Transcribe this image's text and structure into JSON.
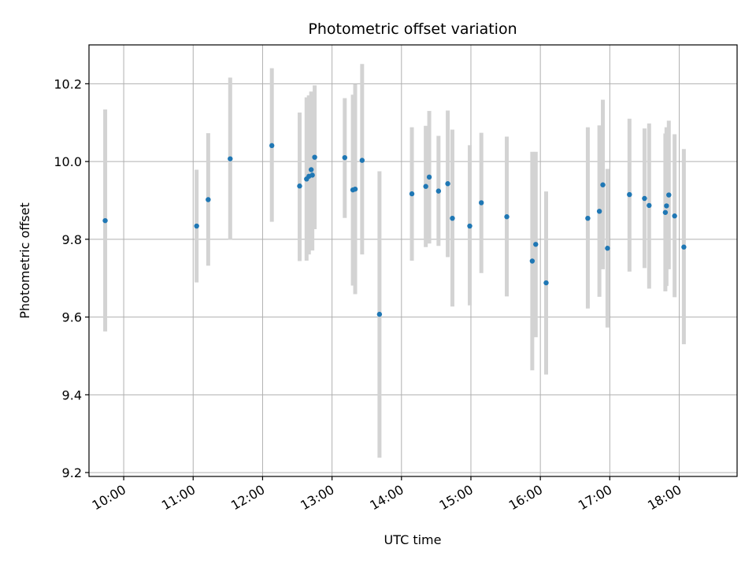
{
  "chart_data": {
    "type": "scatter",
    "title": "Photometric offset variation",
    "xlabel": "UTC time",
    "ylabel": "Photometric offset",
    "x_unit": "time of day (UTC)",
    "xlim": [
      "09:30",
      "18:50"
    ],
    "ylim": [
      9.19,
      10.3
    ],
    "grid": true,
    "y_ticks": [
      9.2,
      9.4,
      9.6,
      9.8,
      10.0,
      10.2
    ],
    "x_ticks": [
      "10:00",
      "11:00",
      "12:00",
      "13:00",
      "14:00",
      "15:00",
      "16:00",
      "17:00",
      "18:00"
    ],
    "colors": {
      "point": "#1f77b4",
      "errorbar": "#d3d3d3",
      "grid": "#b0b0b0"
    },
    "points": [
      {
        "t": "09:44",
        "y": 9.848,
        "low": 9.563,
        "high": 10.134
      },
      {
        "t": "11:03",
        "y": 9.834,
        "low": 9.689,
        "high": 9.979
      },
      {
        "t": "11:13",
        "y": 9.902,
        "low": 9.732,
        "high": 10.073
      },
      {
        "t": "11:32",
        "y": 10.007,
        "low": 9.799,
        "high": 10.216
      },
      {
        "t": "12:08",
        "y": 10.041,
        "low": 9.845,
        "high": 10.24
      },
      {
        "t": "12:32",
        "y": 9.937,
        "low": 9.744,
        "high": 10.126
      },
      {
        "t": "12:38",
        "y": 9.955,
        "low": 9.745,
        "high": 10.165
      },
      {
        "t": "12:40",
        "y": 9.962,
        "low": 9.761,
        "high": 10.17
      },
      {
        "t": "12:42",
        "y": 9.979,
        "low": 9.775,
        "high": 10.18
      },
      {
        "t": "12:43",
        "y": 9.965,
        "low": 9.771,
        "high": 10.166
      },
      {
        "t": "12:45",
        "y": 10.011,
        "low": 9.826,
        "high": 10.196
      },
      {
        "t": "13:11",
        "y": 10.01,
        "low": 9.855,
        "high": 10.163
      },
      {
        "t": "13:18",
        "y": 9.927,
        "low": 9.681,
        "high": 10.172
      },
      {
        "t": "13:20",
        "y": 9.929,
        "low": 9.659,
        "high": 10.199
      },
      {
        "t": "13:26",
        "y": 10.003,
        "low": 9.761,
        "high": 10.251
      },
      {
        "t": "13:41",
        "y": 9.607,
        "low": 9.238,
        "high": 9.975
      },
      {
        "t": "14:09",
        "y": 9.917,
        "low": 9.745,
        "high": 10.088
      },
      {
        "t": "14:21",
        "y": 9.936,
        "low": 9.78,
        "high": 10.092
      },
      {
        "t": "14:24",
        "y": 9.96,
        "low": 9.789,
        "high": 10.13
      },
      {
        "t": "14:32",
        "y": 9.924,
        "low": 9.783,
        "high": 10.066
      },
      {
        "t": "14:40",
        "y": 9.943,
        "low": 9.754,
        "high": 10.131
      },
      {
        "t": "14:44",
        "y": 9.854,
        "low": 9.627,
        "high": 10.082
      },
      {
        "t": "14:59",
        "y": 9.834,
        "low": 9.63,
        "high": 10.042
      },
      {
        "t": "15:09",
        "y": 9.894,
        "low": 9.713,
        "high": 10.074
      },
      {
        "t": "15:31",
        "y": 9.858,
        "low": 9.653,
        "high": 10.064
      },
      {
        "t": "15:53",
        "y": 9.744,
        "low": 9.463,
        "high": 10.025
      },
      {
        "t": "15:56",
        "y": 9.787,
        "low": 9.548,
        "high": 10.025
      },
      {
        "t": "16:05",
        "y": 9.688,
        "low": 9.452,
        "high": 9.923
      },
      {
        "t": "16:41",
        "y": 9.854,
        "low": 9.622,
        "high": 10.088
      },
      {
        "t": "16:51",
        "y": 9.872,
        "low": 9.652,
        "high": 10.093
      },
      {
        "t": "16:54",
        "y": 9.94,
        "low": 9.723,
        "high": 10.159
      },
      {
        "t": "16:58",
        "y": 9.777,
        "low": 9.573,
        "high": 9.981
      },
      {
        "t": "17:17",
        "y": 9.915,
        "low": 9.717,
        "high": 10.11
      },
      {
        "t": "17:30",
        "y": 9.905,
        "low": 9.726,
        "high": 10.085
      },
      {
        "t": "17:34",
        "y": 9.887,
        "low": 9.673,
        "high": 10.098
      },
      {
        "t": "17:48",
        "y": 9.869,
        "low": 9.666,
        "high": 10.072
      },
      {
        "t": "17:49",
        "y": 9.886,
        "low": 9.68,
        "high": 10.088
      },
      {
        "t": "17:51",
        "y": 9.914,
        "low": 9.723,
        "high": 10.105
      },
      {
        "t": "17:56",
        "y": 9.86,
        "low": 9.651,
        "high": 10.07
      },
      {
        "t": "18:04",
        "y": 9.78,
        "low": 9.53,
        "high": 10.032
      }
    ]
  }
}
